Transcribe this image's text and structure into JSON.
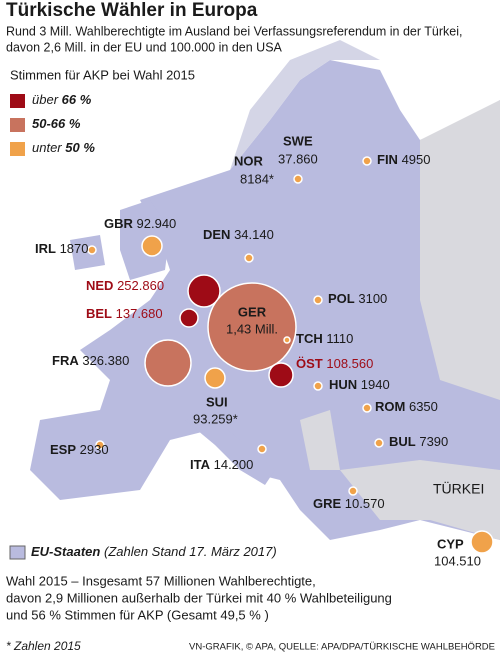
{
  "header": {
    "title": "Türkische Wähler in Europa",
    "subtitle": [
      "Rund 3 Mill. Wahlberechtigte im Ausland bei Verfassungsreferendum in der Türkei,",
      "davon 2,6 Mill. in der EU und 100.000 in den USA"
    ]
  },
  "legend": {
    "title": "Stimmen für AKP bei Wahl 2015",
    "items": [
      {
        "prefix": "über",
        "label": "66 %",
        "color": "#9e0b16"
      },
      {
        "prefix": "",
        "label": "50-66 %",
        "color": "#c8735e"
      },
      {
        "prefix": "unter",
        "label": "50 %",
        "color": "#f0a24a"
      }
    ]
  },
  "markers": [
    {
      "code": "NOR",
      "value": "8184*"
    },
    {
      "code": "SWE",
      "value": "37.860"
    },
    {
      "code": "FIN",
      "value": "4950"
    },
    {
      "code": "GBR",
      "value": "92.940"
    },
    {
      "code": "IRL",
      "value": "1870"
    },
    {
      "code": "DEN",
      "value": "34.140"
    },
    {
      "code": "NED",
      "value": "252.860"
    },
    {
      "code": "BEL",
      "value": "137.680"
    },
    {
      "code": "GER",
      "value": "1,43 Mill."
    },
    {
      "code": "POL",
      "value": "3100"
    },
    {
      "code": "TCH",
      "value": "1110"
    },
    {
      "code": "ÖST",
      "value": "108.560"
    },
    {
      "code": "FRA",
      "value": "326.380"
    },
    {
      "code": "SUI",
      "value": "93.259*"
    },
    {
      "code": "HUN",
      "value": "1940"
    },
    {
      "code": "ROM",
      "value": "6350"
    },
    {
      "code": "ESP",
      "value": "2930"
    },
    {
      "code": "ITA",
      "value": "14.200"
    },
    {
      "code": "BUL",
      "value": "7390"
    },
    {
      "code": "GRE",
      "value": "10.570"
    },
    {
      "code": "CYP",
      "value": "104.510"
    }
  ],
  "map_label": "TÜRKEI",
  "eu_legend": {
    "label": "EU-Staaten",
    "note": "(Zahlen Stand 17. März 2017)"
  },
  "footer": {
    "lines": [
      "Wahl 2015 – Insgesamt 57 Millionen Wahlberechtigte,",
      "davon 2,9 Millionen außerhalb der Türkei mit 40 % Wahlbeteiligung",
      "und 56 % Stimmen für AKP (Gesamt 49,5 % )"
    ],
    "note": "* Zahlen 2015",
    "credit": "VN-GRAFIK, © APA, QUELLE: APA/DPA/TÜRKISCHE WAHLBEHÖRDE"
  }
}
